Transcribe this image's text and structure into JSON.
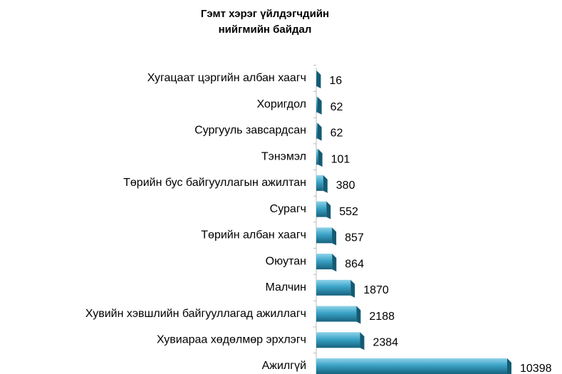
{
  "chart_data": {
    "type": "bar",
    "orientation": "horizontal",
    "title": "Гэмт хэрэг үйлдэгчдийн нийгмийн байдал",
    "categories": [
      "Хугацаат цэргийн албан хаагч",
      "Хоригдол",
      "Сургууль завсардсан",
      "Тэнэмэл",
      "Төрийн бус байгууллагын ажилтан",
      "Сурагч",
      "Төрийн албан хаагч",
      "Оюутан",
      "Малчин",
      "Хувийн хэвшлийн байгууллагад ажиллагч",
      "Хувиараа хөдөлмөр эрхлэгч",
      "Ажилгүй"
    ],
    "values": [
      16,
      62,
      62,
      101,
      380,
      552,
      857,
      864,
      1870,
      2188,
      2384,
      10398
    ],
    "color": "#2f93b5"
  }
}
